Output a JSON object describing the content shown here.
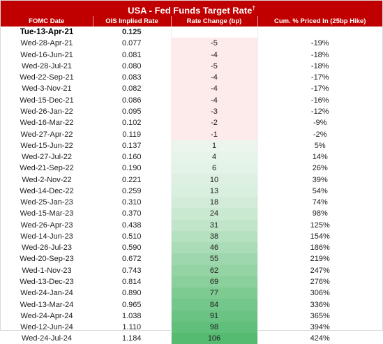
{
  "title": "USA - Fed Funds Target Rate",
  "title_mark": "†",
  "headers": [
    "FOMC Date",
    "OIS Implied Rate",
    "Rate Change (bp)",
    "Cum. % Priced In (25bp Hike)"
  ],
  "colors": {
    "header_bg": "#c00000",
    "negative_fill": "#fdeaea",
    "positive_fill_max": "#55bb70"
  },
  "rows": [
    {
      "date": "Tue-13-Apr-21",
      "rate": "0.125",
      "change": "",
      "cum": ""
    },
    {
      "date": "Wed-28-Apr-21",
      "rate": "0.077",
      "change": "-5",
      "cum": "-19%"
    },
    {
      "date": "Wed-16-Jun-21",
      "rate": "0.081",
      "change": "-4",
      "cum": "-18%"
    },
    {
      "date": "Wed-28-Jul-21",
      "rate": "0.080",
      "change": "-5",
      "cum": "-18%"
    },
    {
      "date": "Wed-22-Sep-21",
      "rate": "0.083",
      "change": "-4",
      "cum": "-17%"
    },
    {
      "date": "Wed-3-Nov-21",
      "rate": "0.082",
      "change": "-4",
      "cum": "-17%"
    },
    {
      "date": "Wed-15-Dec-21",
      "rate": "0.086",
      "change": "-4",
      "cum": "-16%"
    },
    {
      "date": "Wed-26-Jan-22",
      "rate": "0.095",
      "change": "-3",
      "cum": "-12%"
    },
    {
      "date": "Wed-16-Mar-22",
      "rate": "0.102",
      "change": "-2",
      "cum": "-9%"
    },
    {
      "date": "Wed-27-Apr-22",
      "rate": "0.119",
      "change": "-1",
      "cum": "-2%"
    },
    {
      "date": "Wed-15-Jun-22",
      "rate": "0.137",
      "change": "1",
      "cum": "5%"
    },
    {
      "date": "Wed-27-Jul-22",
      "rate": "0.160",
      "change": "4",
      "cum": "14%"
    },
    {
      "date": "Wed-21-Sep-22",
      "rate": "0.190",
      "change": "6",
      "cum": "26%"
    },
    {
      "date": "Wed-2-Nov-22",
      "rate": "0.221",
      "change": "10",
      "cum": "39%"
    },
    {
      "date": "Wed-14-Dec-22",
      "rate": "0.259",
      "change": "13",
      "cum": "54%"
    },
    {
      "date": "Wed-25-Jan-23",
      "rate": "0.310",
      "change": "18",
      "cum": "74%"
    },
    {
      "date": "Wed-15-Mar-23",
      "rate": "0.370",
      "change": "24",
      "cum": "98%"
    },
    {
      "date": "Wed-26-Apr-23",
      "rate": "0.438",
      "change": "31",
      "cum": "125%"
    },
    {
      "date": "Wed-14-Jun-23",
      "rate": "0.510",
      "change": "38",
      "cum": "154%"
    },
    {
      "date": "Wed-26-Jul-23",
      "rate": "0.590",
      "change": "46",
      "cum": "186%"
    },
    {
      "date": "Wed-20-Sep-23",
      "rate": "0.672",
      "change": "55",
      "cum": "219%"
    },
    {
      "date": "Wed-1-Nov-23",
      "rate": "0.743",
      "change": "62",
      "cum": "247%"
    },
    {
      "date": "Wed-13-Dec-23",
      "rate": "0.814",
      "change": "69",
      "cum": "276%"
    },
    {
      "date": "Wed-24-Jan-24",
      "rate": "0.890",
      "change": "77",
      "cum": "306%"
    },
    {
      "date": "Wed-13-Mar-24",
      "rate": "0.965",
      "change": "84",
      "cum": "336%"
    },
    {
      "date": "Wed-24-Apr-24",
      "rate": "1.038",
      "change": "91",
      "cum": "365%"
    },
    {
      "date": "Wed-12-Jun-24",
      "rate": "1.110",
      "change": "98",
      "cum": "394%"
    },
    {
      "date": "Wed-24-Jul-24",
      "rate": "1.184",
      "change": "106",
      "cum": "424%"
    }
  ]
}
